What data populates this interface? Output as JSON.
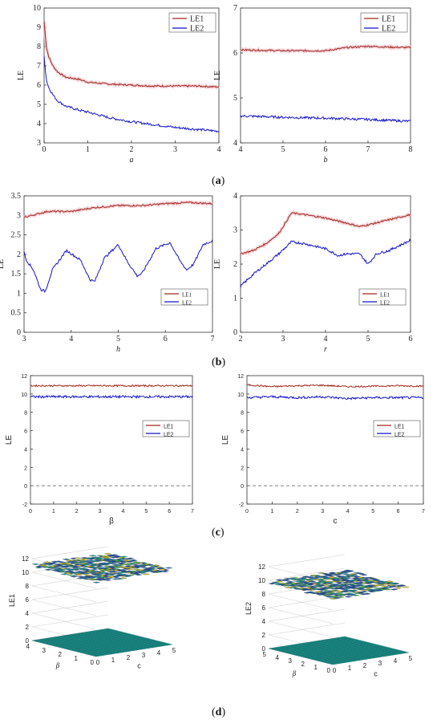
{
  "captions": [
    "(a)",
    "(b)",
    "(c)",
    "(d)"
  ],
  "colors": {
    "le1": "#a0281e",
    "le2": "#1414c8",
    "le1_band": "#f2c8d0",
    "zero_line": "#555555"
  },
  "chart_data": [
    {
      "id": "a-left",
      "type": "line",
      "xlabel": "a",
      "ylabel": "LE",
      "xlim": [
        0,
        4
      ],
      "ylim": [
        3,
        10
      ],
      "xticks": [
        0,
        1,
        2,
        3,
        4
      ],
      "yticks": [
        3,
        4,
        5,
        6,
        7,
        8,
        9,
        10
      ],
      "legend": "top-right",
      "series": [
        {
          "name": "LE1",
          "x": [
            0,
            0.05,
            0.1,
            0.2,
            0.3,
            0.5,
            0.8,
            1,
            1.5,
            2,
            2.5,
            3,
            3.5,
            4
          ],
          "y": [
            9.3,
            8,
            7.5,
            7,
            6.7,
            6.4,
            6.3,
            6.15,
            6.05,
            6,
            5.95,
            5.95,
            5.95,
            5.9
          ]
        },
        {
          "name": "LE2",
          "x": [
            0,
            0.05,
            0.1,
            0.2,
            0.3,
            0.5,
            0.8,
            1,
            1.5,
            2,
            2.5,
            3,
            3.5,
            4
          ],
          "y": [
            7.5,
            6.3,
            5.9,
            5.5,
            5.2,
            4.9,
            4.7,
            4.6,
            4.3,
            4.1,
            3.95,
            3.8,
            3.7,
            3.6
          ]
        }
      ]
    },
    {
      "id": "a-right",
      "type": "line",
      "xlabel": "b",
      "ylabel": "LE",
      "xlim": [
        4,
        8
      ],
      "ylim": [
        4,
        7
      ],
      "xticks": [
        4,
        5,
        6,
        7,
        8
      ],
      "yticks": [
        4,
        5,
        6,
        7
      ],
      "legend": "top-right",
      "series": [
        {
          "name": "LE1",
          "x": [
            4,
            5,
            6,
            6.5,
            7,
            7.5,
            8
          ],
          "y": [
            6.07,
            6.05,
            6.05,
            6.12,
            6.15,
            6.13,
            6.12
          ]
        },
        {
          "name": "LE2",
          "x": [
            4,
            5,
            6,
            7,
            8
          ],
          "y": [
            4.6,
            4.57,
            4.55,
            4.52,
            4.48
          ]
        }
      ]
    },
    {
      "id": "b-left",
      "type": "line",
      "xlabel": "h",
      "ylabel": "LE",
      "xlim": [
        3,
        7
      ],
      "ylim": [
        0,
        3.5
      ],
      "xticks": [
        3,
        4,
        5,
        6,
        7
      ],
      "yticks": [
        0,
        0.5,
        1,
        1.5,
        2,
        2.5,
        3,
        3.5
      ],
      "legend": "bottom-right",
      "series": [
        {
          "name": "LE1",
          "x": [
            3,
            3.5,
            4,
            4.5,
            5,
            5.5,
            6,
            6.5,
            7
          ],
          "y": [
            2.95,
            3.1,
            3.1,
            3.2,
            3.25,
            3.25,
            3.3,
            3.33,
            3.3
          ]
        },
        {
          "name": "LE2",
          "x": [
            3,
            3.05,
            3.2,
            3.35,
            3.45,
            3.6,
            3.9,
            4.2,
            4.4,
            4.5,
            4.7,
            5.0,
            5.2,
            5.4,
            5.5,
            5.8,
            6.1,
            6.3,
            6.45,
            6.6,
            6.8,
            7
          ],
          "y": [
            2.05,
            1.85,
            1.6,
            1.1,
            1.05,
            1.6,
            2.1,
            1.85,
            1.35,
            1.3,
            1.9,
            2.25,
            1.8,
            1.45,
            1.5,
            2.15,
            2.3,
            1.85,
            1.6,
            1.75,
            2.25,
            2.35
          ]
        }
      ]
    },
    {
      "id": "b-right",
      "type": "line",
      "xlabel": "r",
      "ylabel": "LE",
      "xlim": [
        2,
        6
      ],
      "ylim": [
        0,
        4
      ],
      "xticks": [
        2,
        3,
        4,
        5,
        6
      ],
      "yticks": [
        0,
        1,
        2,
        3,
        4
      ],
      "legend": "bottom-right",
      "series": [
        {
          "name": "LE1",
          "x": [
            2,
            2.3,
            2.6,
            2.9,
            3.1,
            3.2,
            3.5,
            4,
            4.5,
            4.8,
            5,
            5.5,
            6
          ],
          "y": [
            2.3,
            2.4,
            2.6,
            2.9,
            3.3,
            3.5,
            3.45,
            3.35,
            3.2,
            3.1,
            3.15,
            3.3,
            3.45
          ]
        },
        {
          "name": "LE2",
          "x": [
            2,
            2.3,
            2.6,
            2.9,
            3.2,
            3.5,
            4,
            4.3,
            4.5,
            4.8,
            5,
            5.2,
            5.5,
            6
          ],
          "y": [
            1.35,
            1.7,
            2.0,
            2.3,
            2.65,
            2.6,
            2.45,
            2.25,
            2.3,
            2.3,
            2.0,
            2.3,
            2.4,
            2.7
          ]
        }
      ]
    },
    {
      "id": "c-left",
      "type": "line",
      "xlabel": "β",
      "ylabel": "LE",
      "xlim": [
        0,
        7
      ],
      "ylim": [
        -2,
        12
      ],
      "xticks": [
        0,
        1,
        2,
        3,
        4,
        5,
        6,
        7
      ],
      "yticks": [
        -2,
        0,
        2,
        4,
        6,
        8,
        10,
        12
      ],
      "legend": "center-right",
      "series": [
        {
          "name": "LE1",
          "x": [
            0,
            7
          ],
          "y": [
            10.9,
            10.9
          ]
        },
        {
          "name": "LE2",
          "x": [
            0,
            7
          ],
          "y": [
            9.7,
            9.7
          ]
        }
      ]
    },
    {
      "id": "c-right",
      "type": "line",
      "xlabel": "c",
      "ylabel": "LE",
      "xlim": [
        0,
        7
      ],
      "ylim": [
        -2,
        12
      ],
      "xticks": [
        0,
        1,
        2,
        3,
        4,
        5,
        6,
        7
      ],
      "yticks": [
        -2,
        0,
        2,
        4,
        6,
        8,
        10,
        12
      ],
      "legend": "center-right",
      "series": [
        {
          "name": "LE1",
          "x": [
            0,
            1,
            2,
            3,
            4,
            5,
            6,
            7
          ],
          "y": [
            11.0,
            10.8,
            10.9,
            10.95,
            10.8,
            10.85,
            10.9,
            10.85
          ]
        },
        {
          "name": "LE2",
          "x": [
            0,
            1,
            2,
            3,
            4,
            5,
            6,
            7
          ],
          "y": [
            9.6,
            9.7,
            9.6,
            9.7,
            9.5,
            9.6,
            9.6,
            9.6
          ]
        }
      ]
    },
    {
      "id": "d-left",
      "type": "surface",
      "zlabel": "LE1",
      "xlabel": "c",
      "ylabel": "β",
      "xticks": [
        0,
        1,
        2,
        3,
        4,
        5
      ],
      "yticks": [
        0,
        1,
        2,
        3,
        4
      ],
      "zticks": [
        0,
        2,
        4,
        6,
        8,
        10,
        12
      ],
      "z_level": 11
    },
    {
      "id": "d-right",
      "type": "surface",
      "zlabel": "LE2",
      "xlabel": "c",
      "ylabel": "β",
      "xticks": [
        0,
        1,
        2,
        3,
        4,
        5
      ],
      "yticks": [
        0,
        1,
        2,
        3,
        4,
        5
      ],
      "zticks": [
        0,
        2,
        4,
        6,
        8,
        10,
        12
      ],
      "z_level": 9.7
    }
  ]
}
